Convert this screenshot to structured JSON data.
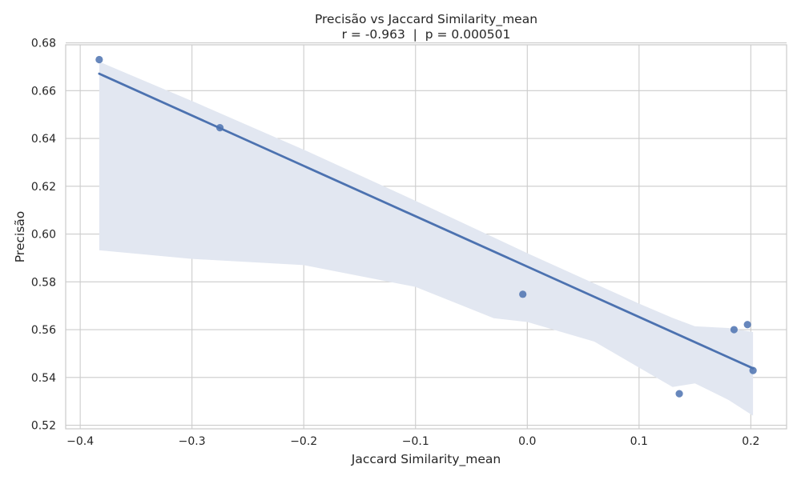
{
  "chart_data": {
    "type": "scatter",
    "title": "Precisão vs Jaccard Similarity_mean",
    "subtitle": "r = -0.963  |  p = 0.000501",
    "xlabel": "Jaccard Similarity_mean",
    "ylabel": "Precisão",
    "xlim": [
      -0.413,
      0.232
    ],
    "ylim": [
      0.5185,
      0.6792
    ],
    "xticks": [
      -0.4,
      -0.3,
      -0.2,
      -0.1,
      0.0,
      0.1,
      0.2
    ],
    "xtick_labels": [
      "−0.4",
      "−0.3",
      "−0.2",
      "−0.1",
      "0.0",
      "0.1",
      "0.2"
    ],
    "yticks": [
      0.52,
      0.54,
      0.56,
      0.58,
      0.6,
      0.62,
      0.64,
      0.66,
      0.68
    ],
    "ytick_labels": [
      "0.52",
      "0.54",
      "0.56",
      "0.58",
      "0.60",
      "0.62",
      "0.64",
      "0.66",
      "0.68"
    ],
    "grid": true,
    "points": [
      {
        "x": -0.383,
        "y": 0.673
      },
      {
        "x": -0.275,
        "y": 0.6445
      },
      {
        "x": -0.004,
        "y": 0.5748
      },
      {
        "x": 0.136,
        "y": 0.5332
      },
      {
        "x": 0.185,
        "y": 0.56
      },
      {
        "x": 0.197,
        "y": 0.5621
      },
      {
        "x": 0.202,
        "y": 0.5429
      }
    ],
    "regression_line": [
      {
        "x": -0.383,
        "y": 0.6671
      },
      {
        "x": 0.202,
        "y": 0.5438
      }
    ],
    "confidence_band": {
      "x": [
        -0.383,
        -0.3,
        -0.2,
        -0.1,
        -0.03,
        0.0,
        0.06,
        0.1,
        0.13,
        0.15,
        0.18,
        0.202
      ],
      "upper": [
        0.6721,
        0.6557,
        0.6353,
        0.6139,
        0.5986,
        0.592,
        0.5793,
        0.5709,
        0.5649,
        0.5614,
        0.5607,
        0.559
      ],
      "lower": [
        0.5932,
        0.5896,
        0.587,
        0.5779,
        0.5648,
        0.5632,
        0.555,
        0.5441,
        0.536,
        0.5375,
        0.5306,
        0.524
      ]
    },
    "colors": {
      "point": "#4c72b0",
      "line": "#4c72b0",
      "band": "#e2e7f1",
      "grid": "#cccccc",
      "frame": "#cccccc"
    }
  }
}
